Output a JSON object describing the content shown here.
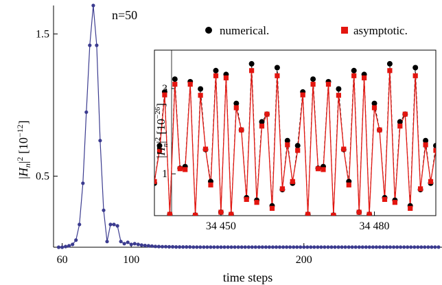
{
  "chart_data": [
    {
      "type": "line",
      "annotation": "n=50",
      "xlabel": "time steps",
      "ylabel": "|H_n|^2 [10^-12]",
      "ylabel_parts": {
        "var": "H",
        "sub": "n",
        "pow": "2",
        "unit_open": "[10",
        "unit_exp": "−12",
        "unit_close": "]"
      },
      "xlim": [
        55,
        280
      ],
      "ylim": [
        0,
        1.7
      ],
      "xticks": [
        {
          "v": 60,
          "label": "60"
        },
        {
          "v": 100,
          "label": "100"
        },
        {
          "v": 200,
          "label": "200"
        }
      ],
      "yticks": [
        {
          "v": 0.5,
          "label": "0.5"
        },
        {
          "v": 1.5,
          "label": "1.5"
        }
      ],
      "series": [
        {
          "color": "#3b3b8f",
          "x": [
            58,
            60,
            62,
            64,
            66,
            68,
            70,
            72,
            74,
            76,
            78,
            80,
            82,
            84,
            86,
            88,
            90,
            92,
            94,
            96,
            98,
            100,
            102,
            104,
            106,
            108,
            110,
            112,
            114,
            116,
            118,
            120,
            122,
            124,
            126,
            128,
            130,
            132,
            134,
            136,
            138,
            140,
            142,
            144,
            146,
            148,
            150,
            152,
            154,
            156,
            158,
            160,
            162,
            164,
            166,
            168,
            170,
            172,
            174,
            176,
            178,
            180,
            182,
            184,
            186,
            188,
            190,
            192,
            194,
            196,
            198,
            200,
            202,
            204,
            206,
            208,
            210,
            212,
            214,
            216,
            218,
            220,
            222,
            224,
            226,
            228,
            230,
            232,
            234,
            236,
            238,
            240,
            242,
            244,
            246,
            248,
            250,
            252,
            254,
            256,
            258,
            260,
            262,
            264,
            266,
            268,
            270,
            272,
            274,
            276,
            278
          ],
          "y": [
            0,
            0,
            0.005,
            0.01,
            0.02,
            0.05,
            0.16,
            0.45,
            0.95,
            1.42,
            1.7,
            1.42,
            0.75,
            0.26,
            0.04,
            0.16,
            0.16,
            0.15,
            0.04,
            0.025,
            0.035,
            0.02,
            0.025,
            0.02,
            0.015,
            0.012,
            0.01,
            0.008,
            0.006,
            0.005,
            0.004,
            0.004,
            0.003,
            0.003,
            0.002,
            0.002,
            0.002,
            0.002,
            0.002,
            0.001,
            0.001,
            0.001,
            0.001,
            0.001,
            0.001,
            0.001,
            0.001,
            0.001,
            0.001,
            0.001,
            0.001,
            0.001,
            0.001,
            0.001,
            0.001,
            0.001,
            0.001,
            0.001,
            0.001,
            0.001,
            0.001,
            0.001,
            0.001,
            0.001,
            0.001,
            0.001,
            0.001,
            0.001,
            0.001,
            0.001,
            0.001,
            0.001,
            0.001,
            0.001,
            0.001,
            0.001,
            0.001,
            0.001,
            0.001,
            0.001,
            0.001,
            0.001,
            0.001,
            0.001,
            0.001,
            0.001,
            0.001,
            0.001,
            0.001,
            0.001,
            0.001,
            0.001,
            0.001,
            0.001,
            0.001,
            0.001,
            0.001,
            0.001,
            0.001,
            0.001,
            0.001,
            0.001,
            0.001,
            0.001,
            0.001,
            0.001,
            0.001,
            0.001,
            0.001,
            0.001,
            0.001
          ]
        }
      ]
    },
    {
      "type": "line",
      "ylabel": "|H_n|^2 [10^-26]",
      "ylabel_parts": {
        "var": "H",
        "sub": "n",
        "pow": "2",
        "unit_open": "[10",
        "unit_exp": "−26",
        "unit_close": "]"
      },
      "xlim": [
        34437,
        34492
      ],
      "ylim": [
        0.02,
        3.9
      ],
      "xticks": [
        {
          "v": 34450,
          "label": "34 450"
        },
        {
          "v": 34480,
          "label": "34 480"
        }
      ],
      "yticks": [
        {
          "v": 1,
          "label": "1"
        },
        {
          "v": 3,
          "label": "3"
        }
      ],
      "legend_position": "top",
      "series": [
        {
          "name": "numerical.",
          "color": "#000000",
          "marker": "circle",
          "x": [
            34436,
            34437,
            34438,
            34439,
            34440,
            34441,
            34442,
            34443,
            34444,
            34445,
            34446,
            34447,
            34448,
            34449,
            34450,
            34451,
            34452,
            34453,
            34454,
            34455,
            34456,
            34457,
            34458,
            34459,
            34460,
            34461,
            34462,
            34463,
            34464,
            34465,
            34466,
            34467,
            34468,
            34469,
            34470,
            34471,
            34472,
            34473,
            34474,
            34475,
            34476,
            34477,
            34478,
            34479,
            34480,
            34481,
            34482,
            34483,
            34484,
            34485,
            34486,
            34487,
            34488,
            34489,
            34490,
            34491,
            34492
          ],
          "y": [
            2.12,
            0.78,
            1.66,
            2.92,
            0.05,
            3.22,
            1.13,
            1.17,
            3.16,
            0.03,
            2.99,
            1.57,
            0.82,
            3.42,
            0.1,
            3.33,
            0.05,
            2.65,
            2.03,
            0.44,
            3.58,
            0.38,
            2.22,
            2.4,
            0.25,
            3.49,
            0.63,
            1.78,
            0.78,
            1.66,
            2.92,
            0.05,
            3.22,
            1.13,
            1.17,
            3.16,
            0.03,
            2.99,
            1.57,
            0.82,
            3.42,
            0.1,
            3.33,
            0.05,
            2.65,
            2.03,
            0.44,
            3.58,
            0.38,
            2.22,
            2.4,
            0.25,
            3.49,
            0.63,
            1.78,
            0.78,
            1.66
          ]
        },
        {
          "name": "asymptotic.",
          "color": "#e3150f",
          "marker": "square",
          "x": [
            34437,
            34438,
            34439,
            34440,
            34441,
            34442,
            34443,
            34444,
            34445,
            34446,
            34447,
            34448,
            34449,
            34450,
            34451,
            34452,
            34453,
            34454,
            34455,
            34456,
            34457,
            34458,
            34459,
            34460,
            34461,
            34462,
            34463,
            34464,
            34465,
            34466,
            34467,
            34468,
            34469,
            34470,
            34471,
            34472,
            34473,
            34474,
            34475,
            34476,
            34477,
            34478,
            34479,
            34480,
            34481,
            34482,
            34483,
            34484,
            34485,
            34486,
            34487,
            34488,
            34489,
            34490,
            34491,
            34492
          ],
          "y": [
            0.82,
            1.55,
            2.85,
            0.05,
            3.1,
            1.12,
            1.1,
            3.1,
            0.03,
            2.84,
            1.58,
            0.74,
            3.3,
            0.1,
            3.25,
            0.05,
            2.55,
            2.03,
            0.4,
            3.42,
            0.33,
            2.12,
            2.4,
            0.19,
            3.3,
            0.65,
            1.68,
            0.82,
            1.55,
            2.85,
            0.05,
            3.1,
            1.12,
            1.1,
            3.1,
            0.03,
            2.84,
            1.58,
            0.74,
            3.3,
            0.1,
            3.25,
            0.05,
            2.55,
            2.03,
            0.4,
            3.42,
            0.33,
            2.12,
            2.4,
            0.19,
            3.3,
            0.65,
            1.68,
            0.82,
            1.55
          ]
        }
      ]
    }
  ]
}
